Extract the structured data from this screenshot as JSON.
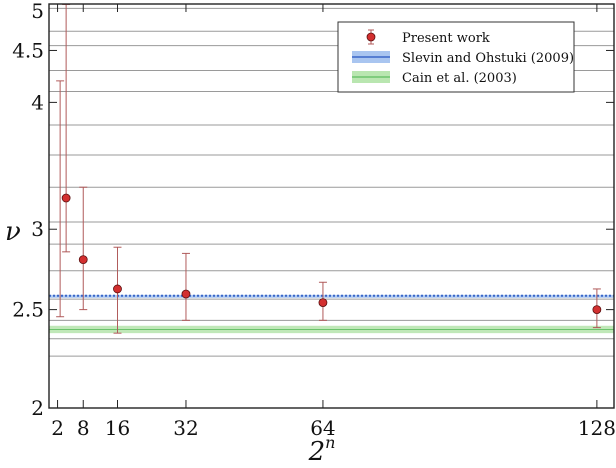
{
  "chart_data": {
    "type": "scatter",
    "xlabel": "2",
    "xlabel_superscript": "n",
    "ylabel": "ν",
    "x_ticks": [
      2,
      8,
      16,
      32,
      64,
      128
    ],
    "y_ticks": [
      2,
      2.5,
      3,
      4,
      4.5,
      5
    ],
    "y_tick_labels": [
      "2",
      "2.5",
      "3",
      "4",
      "4.5",
      "5"
    ],
    "xlim": [
      0,
      132
    ],
    "ylim": [
      2,
      5
    ],
    "y_scale": "log",
    "grid": "horizontal",
    "legend_position": "top-right",
    "legend": [
      {
        "label": "Present work",
        "kind": "marker-errorbar",
        "color": "#d32f2f"
      },
      {
        "label": "Slevin and Ohstuki (2009)",
        "kind": "band",
        "color": "#3a66c8",
        "band_color": "#a9c5f0"
      },
      {
        "label": "Cain et al. (2003)",
        "kind": "band",
        "color": "#6cc36c",
        "band_color": "#b9e6b0"
      }
    ],
    "series": [
      {
        "name": "Present work",
        "color": "#d32f2f",
        "x": [
          4,
          8,
          16,
          32,
          64,
          128
        ],
        "y": [
          3.22,
          2.8,
          2.62,
          2.59,
          2.54,
          2.5
        ],
        "y_low": [
          2.85,
          2.5,
          2.37,
          2.44,
          2.44,
          2.4
        ],
        "y_high": [
          5.05,
          3.3,
          2.88,
          2.84,
          2.66,
          2.62
        ],
        "secondary_error_upper": [
          4.2
        ],
        "secondary_error_lower": [
          2.46
        ]
      }
    ],
    "reference_bands": [
      {
        "name": "Slevin and Ohstuki (2009)",
        "value": 2.58,
        "low": 2.575,
        "high": 2.585,
        "color": "#3a66c8"
      },
      {
        "name": "Cain et al. (2003)",
        "value": 2.39,
        "low": 2.37,
        "high": 2.41,
        "color": "#6cc36c"
      }
    ],
    "grid_lines": [
      2.25,
      2.34,
      2.44,
      2.56,
      2.73,
      2.9,
      3.05,
      3.3,
      3.55,
      3.8,
      4.1,
      4.3,
      4.55,
      4.7,
      4.95
    ],
    "grid_color": "#9a9a9a",
    "errorbar_color": "#b05a5a"
  }
}
